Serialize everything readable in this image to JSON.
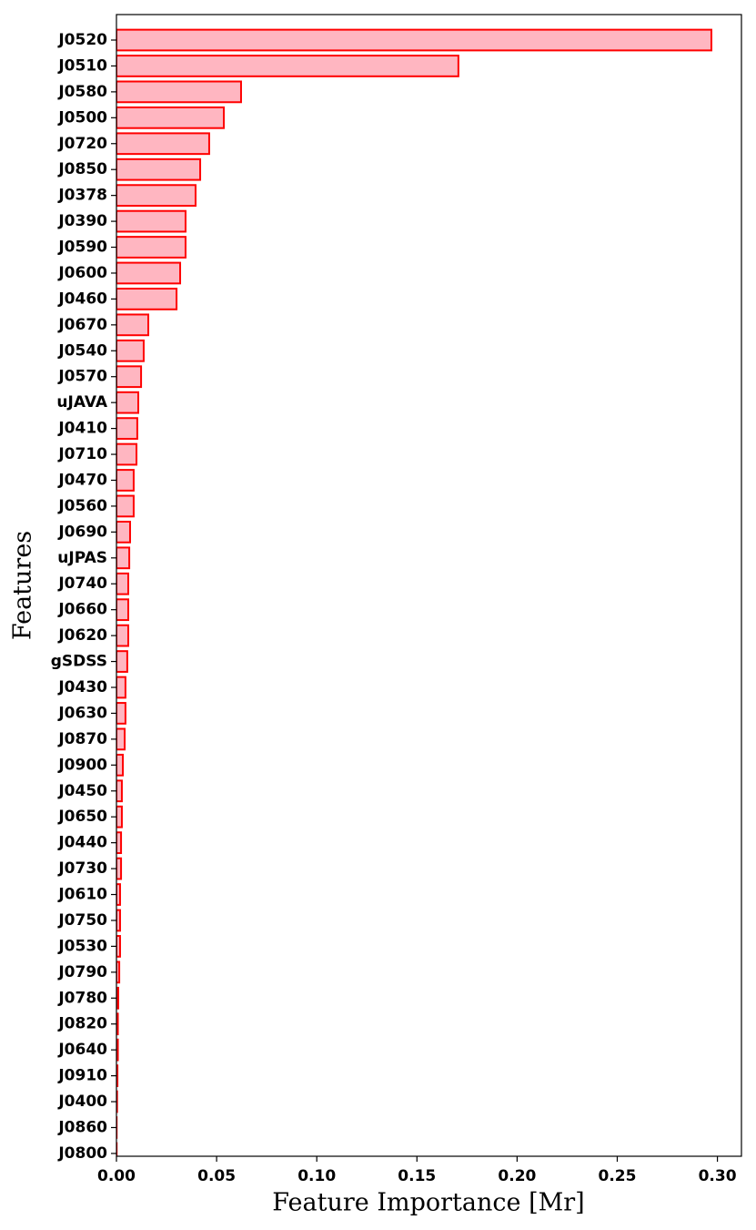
{
  "chart_data": {
    "type": "barh",
    "xlabel": "Feature Importance [Mr]",
    "ylabel": "Features",
    "categories": [
      "J0520",
      "J0510",
      "J0580",
      "J0500",
      "J0720",
      "J0850",
      "J0378",
      "J0390",
      "J0590",
      "J0600",
      "J0460",
      "J0670",
      "J0540",
      "J0570",
      "uJAVA",
      "J0410",
      "J0710",
      "J0470",
      "J0560",
      "J0690",
      "uJPAS",
      "J0740",
      "J0660",
      "J0620",
      "gSDSS",
      "J0430",
      "J0630",
      "J0870",
      "J0900",
      "J0450",
      "J0650",
      "J0440",
      "J0730",
      "J0610",
      "J0750",
      "J0530",
      "J0790",
      "J0780",
      "J0820",
      "J0640",
      "J0910",
      "J0400",
      "J0860",
      "J0800"
    ],
    "values": [
      0.297,
      0.1707,
      0.0622,
      0.0536,
      0.0463,
      0.0418,
      0.0395,
      0.0345,
      0.0345,
      0.0318,
      0.03,
      0.0159,
      0.0136,
      0.0123,
      0.0109,
      0.0104,
      0.01,
      0.0086,
      0.0086,
      0.0068,
      0.0064,
      0.0059,
      0.0059,
      0.0059,
      0.0054,
      0.0045,
      0.0045,
      0.0041,
      0.0032,
      0.0027,
      0.0027,
      0.0023,
      0.0023,
      0.0018,
      0.0018,
      0.0018,
      0.0014,
      0.0009,
      0.0007,
      0.0007,
      0.0005,
      0.0003,
      0.0001,
      0.0001
    ],
    "color": "#ffb6c1",
    "edgecolor": "#ff0000",
    "xlim": [
      0,
      0.312
    ],
    "xticks": [
      {
        "value": 0,
        "label": "0.00"
      },
      {
        "value": 0.05,
        "label": "0.05"
      },
      {
        "value": 0.1,
        "label": "0.10"
      },
      {
        "value": 0.15,
        "label": "0.15"
      },
      {
        "value": 0.2,
        "label": "0.20"
      },
      {
        "value": 0.25,
        "label": "0.25"
      },
      {
        "value": 0.3,
        "label": "0.30"
      }
    ]
  }
}
